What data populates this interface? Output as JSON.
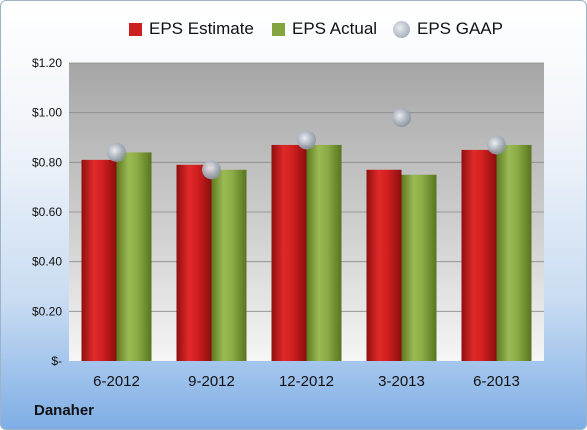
{
  "company": "Danaher",
  "colors": {
    "estimate": "#cc1f1f",
    "actual": "#84a43e",
    "gaap": "#a9b1bb"
  },
  "chart_data": {
    "type": "bar",
    "categories": [
      "6-2012",
      "9-2012",
      "12-2012",
      "3-2013",
      "6-2013"
    ],
    "series": [
      {
        "name": "EPS Estimate",
        "kind": "bar",
        "values": [
          0.81,
          0.79,
          0.87,
          0.77,
          0.85
        ]
      },
      {
        "name": "EPS Actual",
        "kind": "bar",
        "values": [
          0.84,
          0.77,
          0.87,
          0.75,
          0.87
        ]
      },
      {
        "name": "EPS GAAP",
        "kind": "scatter",
        "values": [
          0.84,
          0.77,
          0.89,
          0.98,
          0.87
        ]
      }
    ],
    "yticks": [
      "$-",
      "$0.20",
      "$0.40",
      "$0.60",
      "$0.80",
      "$1.00",
      "$1.20"
    ],
    "ylim": [
      0,
      1.2
    ],
    "grid": true,
    "legend": "top"
  }
}
